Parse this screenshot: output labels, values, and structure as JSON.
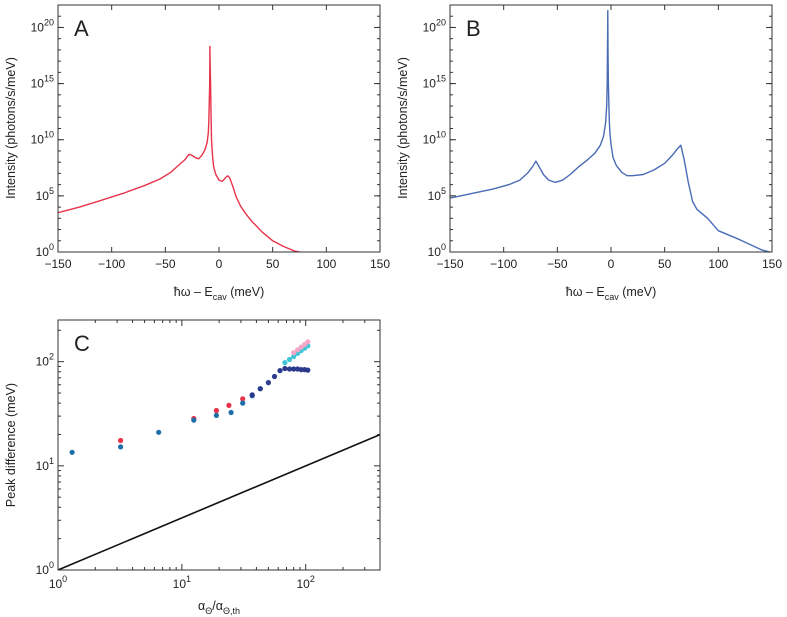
{
  "chart_data": [
    {
      "type": "line",
      "panel": "A",
      "xlabel": "ħω – E",
      "xlabel_sub": "cav",
      "xlabel_unit": " (meV)",
      "ylabel": "Intensity (photons/s/meV)",
      "xlim": [
        -150,
        150
      ],
      "ylim_log10": [
        0,
        22
      ],
      "yscale": "log",
      "xticks": [
        -150,
        -100,
        -50,
        0,
        50,
        100,
        150
      ],
      "xtick_labels": [
        "−150",
        "−100",
        "−50",
        "0",
        "50",
        "100",
        "150"
      ],
      "yticks_log10": [
        0,
        5,
        10,
        15,
        20
      ],
      "ytick_labels": [
        {
          "base": "10",
          "exp": "0"
        },
        {
          "base": "10",
          "exp": "5"
        },
        {
          "base": "10",
          "exp": "10"
        },
        {
          "base": "10",
          "exp": "15"
        },
        {
          "base": "10",
          "exp": "20"
        }
      ],
      "color": "#e8334a",
      "series": [
        {
          "name": "spectrum",
          "x": [
            -150,
            -130,
            -110,
            -90,
            -70,
            -55,
            -45,
            -38,
            -32,
            -28,
            -25,
            -22,
            -19,
            -16,
            -13,
            -11,
            -10,
            -9.5,
            -9,
            -8.7,
            -8.5,
            -8.3,
            -8.1,
            -7.8,
            -7.5,
            -7,
            -6,
            -5,
            -3,
            0,
            3,
            5,
            8,
            10,
            13,
            16,
            20,
            25,
            30,
            40,
            50,
            60,
            70,
            80,
            90,
            95
          ],
          "log10_y": [
            3.5,
            4.0,
            4.6,
            5.2,
            5.9,
            6.5,
            7.1,
            7.7,
            8.2,
            8.7,
            8.6,
            8.4,
            8.3,
            8.6,
            9.1,
            9.8,
            10.6,
            11.6,
            13.5,
            15.0,
            18.3,
            17.0,
            16.0,
            15.0,
            13.0,
            10.0,
            8.5,
            7.6,
            6.9,
            6.4,
            6.3,
            6.5,
            6.8,
            6.6,
            5.8,
            4.9,
            4.1,
            3.4,
            2.8,
            1.8,
            1.0,
            0.5,
            0.1,
            -0.1,
            -0.2,
            -0.2
          ]
        }
      ]
    },
    {
      "type": "line",
      "panel": "B",
      "xlabel": "ħω – E",
      "xlabel_sub": "cav",
      "xlabel_unit": " (meV)",
      "ylabel": "Intensity (photons/s/meV)",
      "xlim": [
        -150,
        150
      ],
      "ylim_log10": [
        0,
        22
      ],
      "yscale": "log",
      "xticks": [
        -150,
        -100,
        -50,
        0,
        50,
        100,
        150
      ],
      "xtick_labels": [
        "−150",
        "−100",
        "−50",
        "0",
        "50",
        "100",
        "150"
      ],
      "yticks_log10": [
        0,
        5,
        10,
        15,
        20
      ],
      "ytick_labels": [
        {
          "base": "10",
          "exp": "0"
        },
        {
          "base": "10",
          "exp": "5"
        },
        {
          "base": "10",
          "exp": "10"
        },
        {
          "base": "10",
          "exp": "15"
        },
        {
          "base": "10",
          "exp": "20"
        }
      ],
      "color": "#4a6bb5",
      "series": [
        {
          "name": "spectrum",
          "x": [
            -150,
            -130,
            -110,
            -95,
            -85,
            -78,
            -73,
            -70,
            -67,
            -63,
            -58,
            -52,
            -45,
            -38,
            -30,
            -22,
            -15,
            -10,
            -7,
            -5,
            -4,
            -3.5,
            -3,
            -2.8,
            -2.5,
            -2,
            -1.5,
            -1,
            0,
            2,
            5,
            10,
            15,
            20,
            30,
            40,
            50,
            57,
            62,
            65,
            68,
            72,
            76,
            80,
            90,
            100,
            120,
            140,
            148
          ],
          "log10_y": [
            4.8,
            5.2,
            5.6,
            6.0,
            6.4,
            7.0,
            7.6,
            8.1,
            7.6,
            6.9,
            6.4,
            6.2,
            6.4,
            6.9,
            7.6,
            8.2,
            8.8,
            9.5,
            10.3,
            11.5,
            13.0,
            15.0,
            21.5,
            18.0,
            15.5,
            13.0,
            11.5,
            10.6,
            9.6,
            8.4,
            7.7,
            7.1,
            6.8,
            6.8,
            6.9,
            7.3,
            7.9,
            8.6,
            9.2,
            9.5,
            8.3,
            6.2,
            4.5,
            3.8,
            3.0,
            1.9,
            1.1,
            0.2,
            0.0
          ]
        }
      ]
    },
    {
      "type": "scatter",
      "panel": "C",
      "xlabel": "α",
      "xlabel_sub1": "Θ",
      "xlabel_mid": "/α",
      "xlabel_sub2": "Θ,th",
      "ylabel": "Peak difference (meV)",
      "xscale": "log",
      "yscale": "log",
      "xlim_log10": [
        0,
        2.6
      ],
      "ylim_log10": [
        0,
        2.4
      ],
      "xticks_log10": [
        0,
        1,
        2
      ],
      "xtick_labels": [
        {
          "base": "10",
          "exp": "0"
        },
        {
          "base": "10",
          "exp": "1"
        },
        {
          "base": "10",
          "exp": "2"
        }
      ],
      "yticks_log10": [
        0,
        1,
        2
      ],
      "ytick_labels": [
        {
          "base": "10",
          "exp": "0"
        },
        {
          "base": "10",
          "exp": "1"
        },
        {
          "base": "10",
          "exp": "2"
        }
      ],
      "reference_line": {
        "x_log10": [
          0,
          2.6
        ],
        "y_log10": [
          0,
          1.3
        ],
        "color": "#111111"
      },
      "series": [
        {
          "name": "red",
          "color": "#e8334a",
          "x": [
            3.2,
            12.5,
            19,
            24,
            31
          ],
          "y": [
            17.5,
            28.5,
            34,
            38,
            44
          ]
        },
        {
          "name": "blue",
          "color": "#1e6fa8",
          "x": [
            1.3,
            3.2,
            6.5,
            12.5,
            19,
            25,
            31,
            37,
            43
          ],
          "y": [
            13.5,
            15.2,
            21,
            27.5,
            30.5,
            32.5,
            40,
            47,
            55
          ]
        },
        {
          "name": "navy",
          "color": "#2b3a8c",
          "x": [
            37,
            43,
            50,
            56,
            62,
            68,
            74,
            80,
            86,
            92,
            98,
            104
          ],
          "y": [
            48,
            55,
            63,
            72,
            82,
            86,
            85,
            85,
            85,
            84,
            84,
            83
          ]
        },
        {
          "name": "cyan",
          "color": "#3fc6d6",
          "x": [
            68,
            74,
            80,
            86,
            92,
            98,
            104
          ],
          "y": [
            98,
            105,
            112,
            120,
            128,
            135,
            142
          ]
        },
        {
          "name": "pink",
          "color": "#f4a6c6",
          "x": [
            80,
            86,
            92,
            98,
            104
          ],
          "y": [
            122,
            130,
            138,
            146,
            155
          ]
        }
      ]
    }
  ]
}
